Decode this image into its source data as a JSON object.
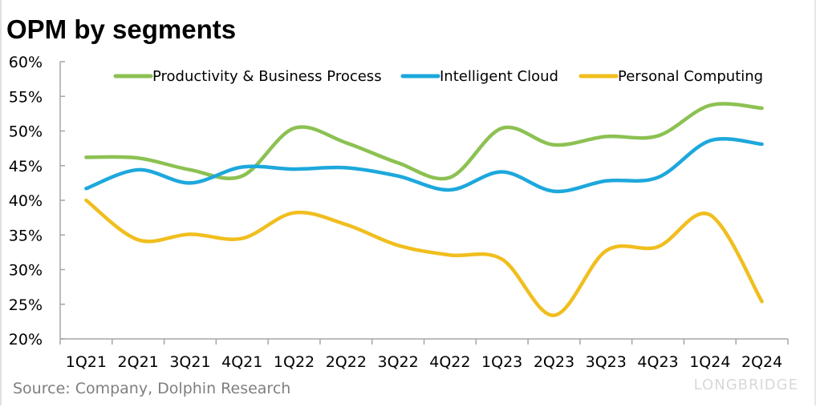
{
  "title": "OPM by segments",
  "source": "Source:  Company, Dolphin Research",
  "watermark": "LONGBRIDGE",
  "chart_data": {
    "type": "line",
    "title": "OPM by segments",
    "categories": [
      "1Q21",
      "2Q21",
      "3Q21",
      "4Q21",
      "1Q22",
      "2Q22",
      "3Q22",
      "4Q22",
      "1Q23",
      "2Q23",
      "3Q23",
      "4Q23",
      "1Q24",
      "2Q24"
    ],
    "ylim": [
      20,
      60
    ],
    "yticks": [
      "20%",
      "25%",
      "30%",
      "35%",
      "40%",
      "45%",
      "50%",
      "55%",
      "60%"
    ],
    "ytick_values": [
      20,
      25,
      30,
      35,
      40,
      45,
      50,
      55,
      60
    ],
    "grid": false,
    "smooth": true,
    "legend_position": "top",
    "series": [
      {
        "name": "Productivity & Business Process",
        "color": "#8cc152",
        "values": [
          46.2,
          46.1,
          44.4,
          43.5,
          50.4,
          48.3,
          45.4,
          43.3,
          50.4,
          48.0,
          49.2,
          49.3,
          53.7,
          53.3
        ]
      },
      {
        "name": "Intelligent Cloud",
        "color": "#1da8dc",
        "values": [
          41.7,
          44.4,
          42.5,
          44.8,
          44.5,
          44.7,
          43.5,
          41.5,
          44.1,
          41.3,
          42.8,
          43.3,
          48.6,
          48.1
        ]
      },
      {
        "name": "Personal Computing",
        "color": "#f0be1e",
        "values": [
          40.0,
          34.3,
          35.1,
          34.5,
          38.2,
          36.5,
          33.5,
          32.1,
          31.5,
          23.4,
          32.7,
          33.3,
          37.9,
          25.4
        ]
      }
    ]
  }
}
